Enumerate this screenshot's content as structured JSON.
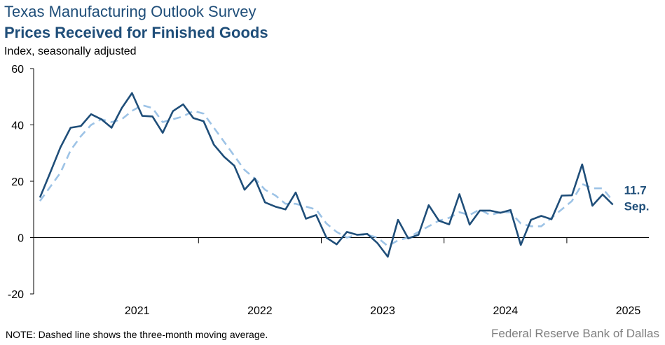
{
  "header": {
    "title": "Texas Manufacturing Outlook Survey",
    "subtitle": "Prices Received for Finished Goods",
    "ylabel": "Index, seasonally adjusted"
  },
  "footer": {
    "note": "NOTE: Dashed line shows the three-month  moving average.",
    "source": "Federal Reserve Bank of Dallas"
  },
  "chart_data": {
    "type": "line",
    "title": "Prices Received for Finished Goods",
    "ylabel": "Index, seasonally adjusted",
    "ylim": [
      -20,
      60
    ],
    "yticks": [
      -20,
      0,
      20,
      40,
      60
    ],
    "x_start": "2020-09",
    "x_end": "2025-09",
    "xtick_labels": [
      "2021",
      "2022",
      "2023",
      "2024",
      "2025"
    ],
    "grid": false,
    "colors": {
      "index": "#1f4e79",
      "average": "#9dc3e6"
    },
    "annotation": {
      "value": "11.7",
      "month": "Sep."
    },
    "series": [
      {
        "style": "solid",
        "values": [
          14.2,
          23.0,
          32.0,
          39.0,
          39.6,
          43.8,
          42.0,
          39.0,
          46.0,
          51.3,
          43.2,
          43.0,
          37.2,
          44.9,
          47.3,
          42.4,
          41.3,
          33.0,
          28.7,
          25.5,
          17.0,
          21.0,
          12.5,
          11.0,
          10.0,
          16.0,
          6.7,
          8.0,
          0.0,
          -2.4,
          2.0,
          1.0,
          1.3,
          -2.0,
          -6.8,
          6.3,
          -0.3,
          1.0,
          11.5,
          6.0,
          4.7,
          15.4,
          4.6,
          9.6,
          9.6,
          8.8,
          9.8,
          -2.6,
          6.3,
          7.7,
          6.5,
          14.9,
          15.0,
          26.0,
          11.3,
          15.3,
          11.7
        ]
      },
      {
        "style": "dashed",
        "values": [
          13.0,
          18.0,
          23.0,
          31.0,
          36.0,
          40.0,
          42.0,
          41.0,
          42.0,
          45.0,
          47.0,
          46.0,
          41.0,
          42.0,
          43.0,
          45.0,
          44.0,
          39.0,
          34.0,
          29.0,
          24.0,
          21.0,
          17.0,
          15.0,
          12.0,
          12.0,
          11.0,
          10.0,
          5.0,
          2.0,
          0.0,
          1.0,
          1.0,
          0.0,
          -3.0,
          -1.0,
          0.0,
          2.0,
          4.0,
          6.0,
          7.0,
          9.0,
          8.0,
          10.0,
          8.0,
          9.0,
          9.0,
          5.0,
          4.0,
          4.0,
          7.0,
          10.0,
          13.0,
          19.0,
          17.5,
          17.5,
          13.0
        ]
      }
    ]
  }
}
